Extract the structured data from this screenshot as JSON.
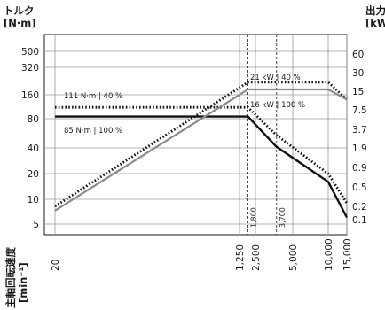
{
  "chart_data": {
    "type": "line",
    "left_axis_title": [
      "トルク",
      "[N·m]"
    ],
    "right_axis_title": [
      "出力",
      "[kW]"
    ],
    "x_axis_title": [
      "主軸回転速度",
      "[min⁻¹]"
    ],
    "scale": "log",
    "x_ticks": [
      "20",
      "1,250",
      "2,500",
      "5,000",
      "10,000",
      "15,000"
    ],
    "x_tick_values": [
      20,
      1250,
      2500,
      5000,
      10000,
      15000
    ],
    "y_left_ticks": [
      "500",
      "320",
      "160",
      "80",
      "40",
      "20",
      "10",
      "5"
    ],
    "y_left_values": [
      500,
      320,
      160,
      80,
      40,
      20,
      10,
      5
    ],
    "y_right_ticks": [
      "60",
      "30",
      "15",
      "7.5",
      "3.7",
      "1.9",
      "0.9",
      "0.5",
      "0.2",
      "0.1"
    ],
    "y_right_values": [
      60,
      30,
      15,
      7.5,
      3.7,
      1.9,
      0.9,
      0.5,
      0.2,
      0.1
    ],
    "marker_lines": [
      {
        "label": "1,800",
        "x": 1800
      },
      {
        "label": "3,700",
        "x": 3700
      }
    ],
    "series": [
      {
        "name": "111 N·m | 40 %",
        "axis": "left",
        "style": "dotted",
        "points": [
          [
            20,
            111
          ],
          [
            1800,
            111
          ],
          [
            3700,
            54
          ],
          [
            10000,
            20
          ],
          [
            15000,
            9
          ]
        ]
      },
      {
        "name": "85 N·m | 100 %",
        "axis": "left",
        "style": "solid",
        "points": [
          [
            20,
            85
          ],
          [
            1800,
            85
          ],
          [
            3700,
            41
          ],
          [
            10000,
            16
          ],
          [
            15000,
            6
          ]
        ]
      },
      {
        "name": "21 kW | 40 %",
        "axis": "right",
        "style": "dotted",
        "points": [
          [
            20,
            0.2
          ],
          [
            1800,
            21
          ],
          [
            10000,
            21
          ],
          [
            15000,
            11
          ]
        ]
      },
      {
        "name": "16 kW | 100 %",
        "axis": "right",
        "style": "solid",
        "points": [
          [
            20,
            0.16
          ],
          [
            1800,
            16
          ],
          [
            10000,
            16
          ],
          [
            15000,
            11
          ]
        ]
      }
    ]
  }
}
